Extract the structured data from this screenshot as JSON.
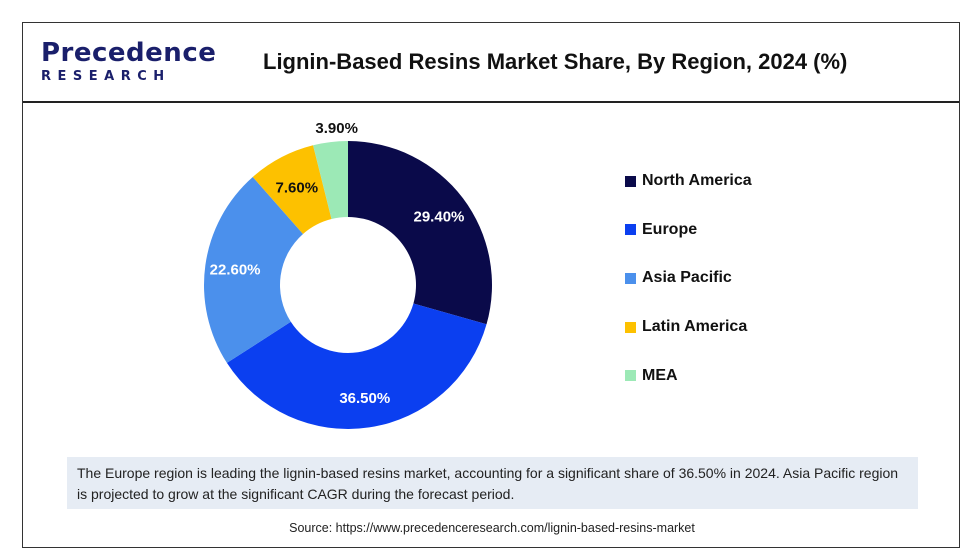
{
  "header": {
    "logo_top": "Precedence",
    "logo_bottom": "RESEARCH",
    "title": "Lignin-Based Resins Market Share, By Region, 2024 (%)"
  },
  "chart_data": {
    "type": "pie",
    "title": "Lignin-Based Resins Market Share, By Region, 2024 (%)",
    "donut": true,
    "legend_position": "right",
    "categories": [
      "North America",
      "Europe",
      "Asia Pacific",
      "Latin America",
      "MEA"
    ],
    "values": [
      29.4,
      36.5,
      22.6,
      7.6,
      3.9
    ],
    "labels": [
      "29.40%",
      "36.50%",
      "22.60%",
      "7.60%",
      "3.90%"
    ],
    "colors": [
      "#0a0a4a",
      "#0b3ff0",
      "#4b90ec",
      "#fdc100",
      "#9ce9b6"
    ]
  },
  "summary": "The Europe region is leading the lignin-based resins market, accounting for a significant share of 36.50% in 2024. Asia Pacific region is projected to grow at the significant CAGR during the forecast period.",
  "source": "Source: https://www.precedenceresearch.com/lignin-based-resins-market"
}
